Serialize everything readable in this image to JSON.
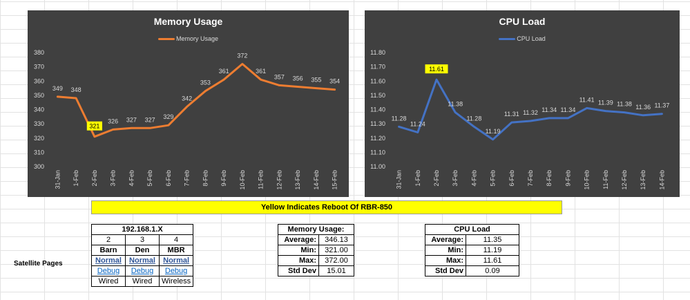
{
  "banner": "Yellow Indicates Reboot Of RBR-850",
  "satellite_label": "Satellite  Pages",
  "satellite_table": {
    "title": "192.168.1.X",
    "numbers": [
      "2",
      "3",
      "4"
    ],
    "names": [
      "Barn",
      "Den",
      "MBR"
    ],
    "status": [
      "Normal",
      "Normal",
      "Normal"
    ],
    "debug": [
      "Debug",
      "Debug",
      "Debug"
    ],
    "connection": [
      "Wired",
      "Wired",
      "Wireless"
    ]
  },
  "memory_stats": {
    "title": "Memory Usage:",
    "rows": [
      {
        "label": "Average:",
        "value": "346.13"
      },
      {
        "label": "Min:",
        "value": "321.00"
      },
      {
        "label": "Max:",
        "value": "372.00"
      },
      {
        "label": "Std Dev",
        "value": "15.01"
      }
    ]
  },
  "cpu_stats": {
    "title": "CPU Load",
    "rows": [
      {
        "label": "Average:",
        "value": "11.35"
      },
      {
        "label": "Min:",
        "value": "11.19"
      },
      {
        "label": "Max:",
        "value": "11.61"
      },
      {
        "label": "Std Dev",
        "value": "0.09"
      }
    ]
  },
  "colors": {
    "chart_bg": "#404040",
    "memory_line": "#ed7d31",
    "cpu_line": "#4472c4",
    "highlight": "#ffff00"
  },
  "chart_data": [
    {
      "type": "line",
      "title": "Memory Usage",
      "legend": "top-center",
      "grid": false,
      "categories": [
        "31-Jan",
        "1-Feb",
        "2-Feb",
        "3-Feb",
        "4-Feb",
        "5-Feb",
        "6-Feb",
        "7-Feb",
        "8-Feb",
        "9-Feb",
        "10-Feb",
        "11-Feb",
        "12-Feb",
        "13-Feb",
        "14-Feb",
        "15-Feb"
      ],
      "series": [
        {
          "name": "Memory Usage",
          "values": [
            349,
            348,
            321,
            326,
            327,
            327,
            329,
            342,
            353,
            361,
            372,
            361,
            357,
            356,
            355,
            354
          ]
        }
      ],
      "yticks": [
        "300",
        "310",
        "320",
        "330",
        "340",
        "350",
        "360",
        "370",
        "380"
      ],
      "ylim": [
        300,
        380
      ],
      "highlight_index": 2
    },
    {
      "type": "line",
      "title": "CPU Load",
      "legend": "top-center",
      "grid": false,
      "categories": [
        "31-Jan",
        "1-Feb",
        "2-Feb",
        "3-Feb",
        "4-Feb",
        "5-Feb",
        "6-Feb",
        "7-Feb",
        "8-Feb",
        "9-Feb",
        "10-Feb",
        "11-Feb",
        "12-Feb",
        "13-Feb",
        "14-Feb"
      ],
      "series": [
        {
          "name": "CPU Load",
          "values": [
            11.28,
            11.24,
            11.61,
            11.38,
            11.28,
            11.19,
            11.31,
            11.32,
            11.34,
            11.34,
            11.41,
            11.39,
            11.38,
            11.36,
            11.37
          ]
        }
      ],
      "yticks": [
        "11.00",
        "11.10",
        "11.20",
        "11.30",
        "11.40",
        "11.50",
        "11.60",
        "11.70",
        "11.80"
      ],
      "ylim": [
        11.0,
        11.8
      ],
      "highlight_index": 2
    }
  ]
}
